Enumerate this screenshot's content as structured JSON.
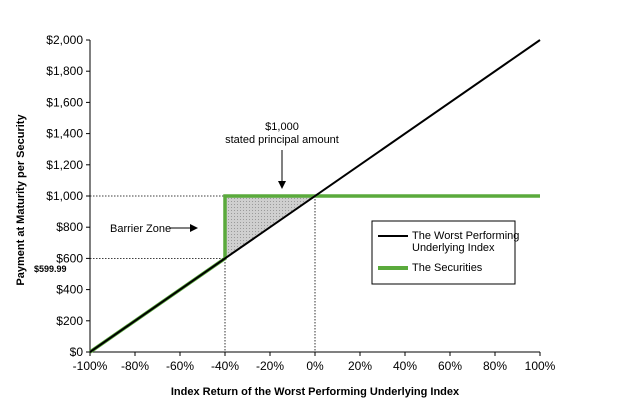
{
  "chart_data": {
    "type": "line",
    "xlabel": "Index Return of the Worst Performing Underlying Index",
    "ylabel": "Payment at Maturity per Security",
    "xlim": [
      -100,
      100
    ],
    "ylim": [
      0,
      2000
    ],
    "x_ticks": [
      -100,
      -80,
      -60,
      -40,
      -20,
      0,
      20,
      40,
      60,
      80,
      100
    ],
    "x_tick_labels": [
      "-100%",
      "-80%",
      "-60%",
      "-40%",
      "-20%",
      "0%",
      "20%",
      "40%",
      "60%",
      "80%",
      "100%"
    ],
    "y_ticks": [
      0,
      200,
      400,
      600,
      800,
      1000,
      1200,
      1400,
      1600,
      1800,
      2000
    ],
    "y_tick_labels": [
      "$0",
      "$200",
      "$400",
      "$600",
      "$800",
      "$1,000",
      "$1,200",
      "$1,400",
      "$1,600",
      "$1,800",
      "$2,000"
    ],
    "series": [
      {
        "name": "The Worst Performing Underlying Index",
        "color": "#000000",
        "points": [
          [
            -100,
            0
          ],
          [
            100,
            2000
          ]
        ]
      },
      {
        "name": "The Securities",
        "color": "#5aaa3c",
        "points": [
          [
            -100,
            0
          ],
          [
            -40,
            599.99
          ],
          [
            -40,
            1000
          ],
          [
            100,
            1000
          ]
        ]
      }
    ],
    "barrier_zone": {
      "x_from": -40,
      "x_to": 0,
      "label": "Barrier Zone"
    },
    "annotations": {
      "principal_line1": "$1,000",
      "principal_line2": "stated principal amount",
      "barrier_value": "$599.99"
    },
    "legend": {
      "position": "right",
      "entries": [
        {
          "line1": "The Worst Performing",
          "line2": "Underlying Index"
        },
        {
          "line1": "The Securities",
          "line2": ""
        }
      ]
    },
    "grid": false
  }
}
